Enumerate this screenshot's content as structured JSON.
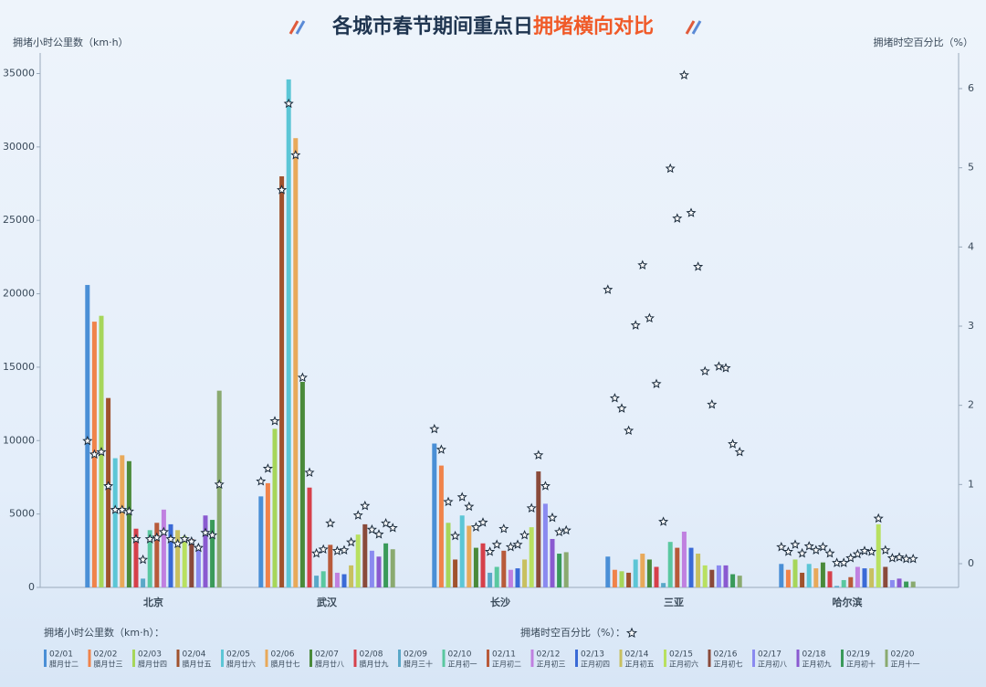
{
  "chart_data": {
    "type": "bar",
    "title": [
      "各城市春节期间重点日",
      "拥堵横向对比"
    ],
    "title_colors": [
      "#1f3550",
      "#f05a28"
    ],
    "y_label": "拥堵小时公里数（km·h）",
    "y2_label": "拥堵时空百分比（%）",
    "legend_bar_title": "拥堵小时公里数（km·h）：",
    "legend_star_title": "拥堵时空百分比（%）：",
    "categories": [
      "北京",
      "武汉",
      "长沙",
      "三亚",
      "哈尔滨"
    ],
    "ylim": [
      0,
      36400
    ],
    "yticks": [
      0,
      5000,
      10000,
      15000,
      20000,
      25000,
      30000,
      35000
    ],
    "y2lim": [
      -0.3,
      6.45
    ],
    "y2ticks": [
      0,
      1,
      2,
      3,
      4,
      5,
      6
    ],
    "star_color": "#1a2a3a",
    "series": [
      {
        "name": "02/01",
        "label": "腊月廿二",
        "color": "#4a8fd6",
        "label_color": "#3a5a80",
        "values": [
          20600,
          6200,
          9800,
          2100,
          1600
        ],
        "y2_values": [
          1.55,
          1.04,
          1.7,
          3.46,
          0.21
        ]
      },
      {
        "name": "02/02",
        "label": "腊月廿三",
        "color": "#f0834a",
        "label_color": "#3a5a80",
        "values": [
          18100,
          7100,
          8300,
          1200,
          1200
        ],
        "y2_values": [
          1.38,
          1.2,
          1.44,
          2.09,
          0.15
        ]
      },
      {
        "name": "02/03",
        "label": "腊月廿四",
        "color": "#a6d65a",
        "label_color": "#3a5a80",
        "values": [
          18500,
          10800,
          4400,
          1100,
          1900
        ],
        "y2_values": [
          1.41,
          1.8,
          0.78,
          1.96,
          0.24
        ]
      },
      {
        "name": "02/04",
        "label": "腊月廿五",
        "color": "#a0522d",
        "label_color": "#3a5a80",
        "values": [
          12900,
          28000,
          1900,
          1000,
          1000
        ],
        "y2_values": [
          0.98,
          4.72,
          0.35,
          1.68,
          0.13
        ]
      },
      {
        "name": "02/05",
        "label": "腊月廿六",
        "color": "#5cc6d6",
        "label_color": "#3a5a80",
        "values": [
          8800,
          34600,
          4900,
          1900,
          1600
        ],
        "y2_values": [
          0.68,
          5.81,
          0.84,
          3.01,
          0.22
        ]
      },
      {
        "name": "02/06",
        "label": "腊月廿七",
        "color": "#e8a95a",
        "label_color": "#3a5a80",
        "values": [
          9000,
          30600,
          4200,
          2300,
          1300
        ],
        "y2_values": [
          0.68,
          5.16,
          0.72,
          3.77,
          0.17
        ]
      },
      {
        "name": "02/07",
        "label": "腊月廿八",
        "color": "#4a8a3a",
        "label_color": "#d6303a",
        "values": [
          8600,
          14000,
          2700,
          1900,
          1700
        ],
        "y2_values": [
          0.66,
          2.35,
          0.46,
          3.1,
          0.21
        ]
      },
      {
        "name": "02/08",
        "label": "腊月廿九",
        "color": "#d6404a",
        "label_color": "#d6303a",
        "values": [
          4000,
          6800,
          3000,
          1400,
          1100
        ],
        "y2_values": [
          0.31,
          1.15,
          0.52,
          2.27,
          0.13
        ]
      },
      {
        "name": "02/09",
        "label": "腊月三十",
        "color": "#5aa8c8",
        "label_color": "#d6303a",
        "values": [
          600,
          800,
          1000,
          300,
          100
        ],
        "y2_values": [
          0.05,
          0.13,
          0.15,
          0.53,
          0.01
        ]
      },
      {
        "name": "02/10",
        "label": "正月初一",
        "color": "#5ac8a0",
        "label_color": "#d6303a",
        "values": [
          3900,
          1100,
          1400,
          3100,
          500
        ],
        "y2_values": [
          0.31,
          0.18,
          0.24,
          4.99,
          0.01
        ]
      },
      {
        "name": "02/11",
        "label": "正月初二",
        "color": "#b85a3a",
        "label_color": "#d6303a",
        "values": [
          4400,
          2900,
          2500,
          2700,
          700
        ],
        "y2_values": [
          0.33,
          0.51,
          0.44,
          4.36,
          0.07
        ]
      },
      {
        "name": "02/12",
        "label": "正月初三",
        "color": "#c080e0",
        "label_color": "#d6303a",
        "values": [
          5300,
          1000,
          1200,
          3800,
          1400
        ],
        "y2_values": [
          0.4,
          0.16,
          0.21,
          6.17,
          0.12
        ]
      },
      {
        "name": "02/13",
        "label": "正月初四",
        "color": "#3a6ad6",
        "label_color": "#3a5a80",
        "values": [
          4300,
          900,
          1300,
          2700,
          1300
        ],
        "y2_values": [
          0.31,
          0.17,
          0.24,
          4.43,
          0.16
        ]
      },
      {
        "name": "02/14",
        "label": "正月初五",
        "color": "#c8c060",
        "label_color": "#3a5a80",
        "values": [
          3900,
          1500,
          1900,
          2300,
          1300
        ],
        "y2_values": [
          0.25,
          0.27,
          0.36,
          3.75,
          0.15
        ]
      },
      {
        "name": "02/15",
        "label": "正月初六",
        "color": "#b8e060",
        "label_color": "#3a5a80",
        "values": [
          3500,
          3600,
          4100,
          1500,
          4300
        ],
        "y2_values": [
          0.31,
          0.61,
          0.7,
          2.43,
          0.57
        ]
      },
      {
        "name": "02/16",
        "label": "正月初七",
        "color": "#8a4a3a",
        "label_color": "#3a5a80",
        "values": [
          3300,
          4300,
          7900,
          1200,
          1400
        ],
        "y2_values": [
          0.28,
          0.73,
          1.37,
          2.01,
          0.17
        ]
      },
      {
        "name": "02/17",
        "label": "正月初八",
        "color": "#8a8af0",
        "label_color": "#3a5a80",
        "values": [
          2700,
          2500,
          5700,
          1500,
          500
        ],
        "y2_values": [
          0.2,
          0.43,
          0.98,
          2.49,
          0.07
        ]
      },
      {
        "name": "02/18",
        "label": "正月初九",
        "color": "#8a5ad0",
        "label_color": "#3a5a80",
        "values": [
          4900,
          2100,
          3300,
          1500,
          600
        ],
        "y2_values": [
          0.39,
          0.37,
          0.58,
          2.47,
          0.08
        ]
      },
      {
        "name": "02/19",
        "label": "正月初十",
        "color": "#3a9a5a",
        "label_color": "#3a5a80",
        "values": [
          4600,
          3000,
          2300,
          900,
          400
        ],
        "y2_values": [
          0.36,
          0.51,
          0.4,
          1.51,
          0.06
        ]
      },
      {
        "name": "02/20",
        "label": "正月十一",
        "color": "#8aaa70",
        "label_color": "#3a5a80",
        "values": [
          13400,
          2600,
          2400,
          800,
          400
        ],
        "y2_values": [
          1.0,
          0.45,
          0.42,
          1.41,
          0.06
        ]
      }
    ]
  }
}
